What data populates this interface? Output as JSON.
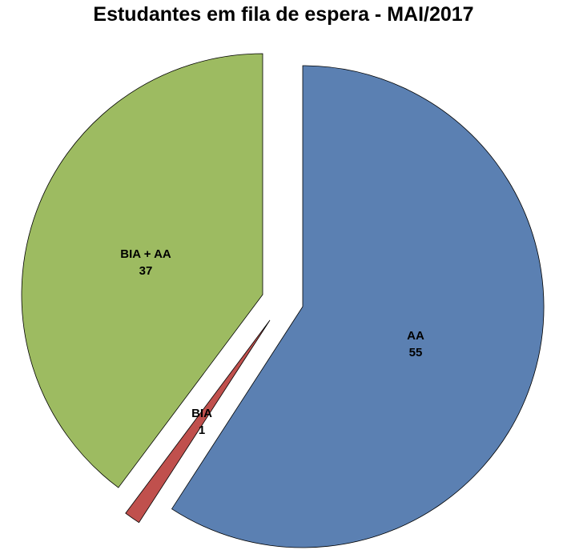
{
  "chart_data": {
    "type": "pie",
    "title": "Estudantes em fila de espera -  MAI/2017",
    "start_angle": "12 o'clock, clockwise",
    "exploded": true,
    "legend": "none",
    "slices": [
      {
        "label": "AA",
        "value": 55,
        "color": "#5B80B2"
      },
      {
        "label": "BIA",
        "value": 1,
        "color": "#C0504D"
      },
      {
        "label": "BIA + AA",
        "value": 37,
        "color": "#9DBB61"
      }
    ]
  }
}
